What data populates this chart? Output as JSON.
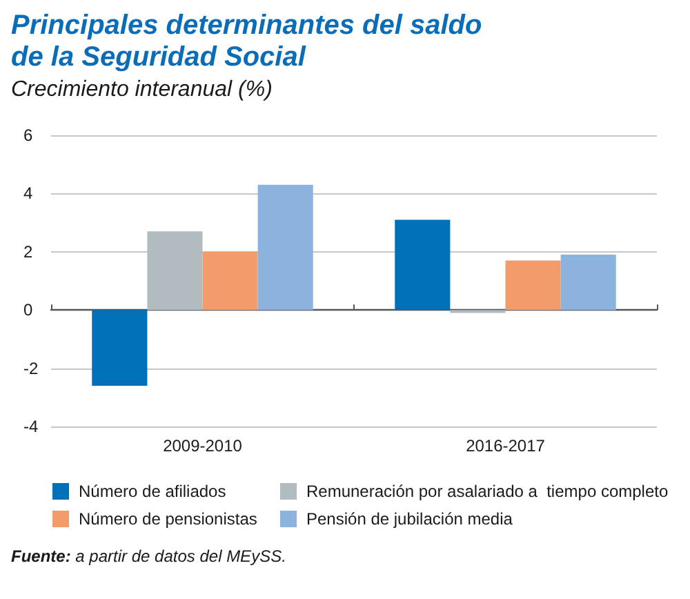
{
  "chart_data": {
    "type": "bar",
    "title": "Principales determinantes del saldo de la Seguridad Social",
    "subtitle": "Crecimiento interanual (%)",
    "categories": [
      "2009-2010",
      "2016-2017"
    ],
    "series": [
      {
        "name": "Número de afiliados",
        "color": "#0070b8",
        "values": [
          -2.6,
          3.1
        ]
      },
      {
        "name": "Remuneración por asalariado a  tiempo completo",
        "color": "#b2bcc0",
        "values": [
          2.7,
          -0.1
        ]
      },
      {
        "name": "Número de pensionistas",
        "color": "#f29b6b",
        "values": [
          2.0,
          1.7
        ]
      },
      {
        "name": "Pensión de jubilación media",
        "color": "#8cb3de",
        "values": [
          4.3,
          1.9
        ]
      }
    ],
    "ylim": [
      -4,
      6
    ],
    "yticks": [
      -4,
      -2,
      0,
      2,
      4,
      6
    ],
    "grid": "y",
    "legend": "bottom",
    "annotations": [
      "Fuente: a partir de datos del MEySS."
    ]
  }
}
